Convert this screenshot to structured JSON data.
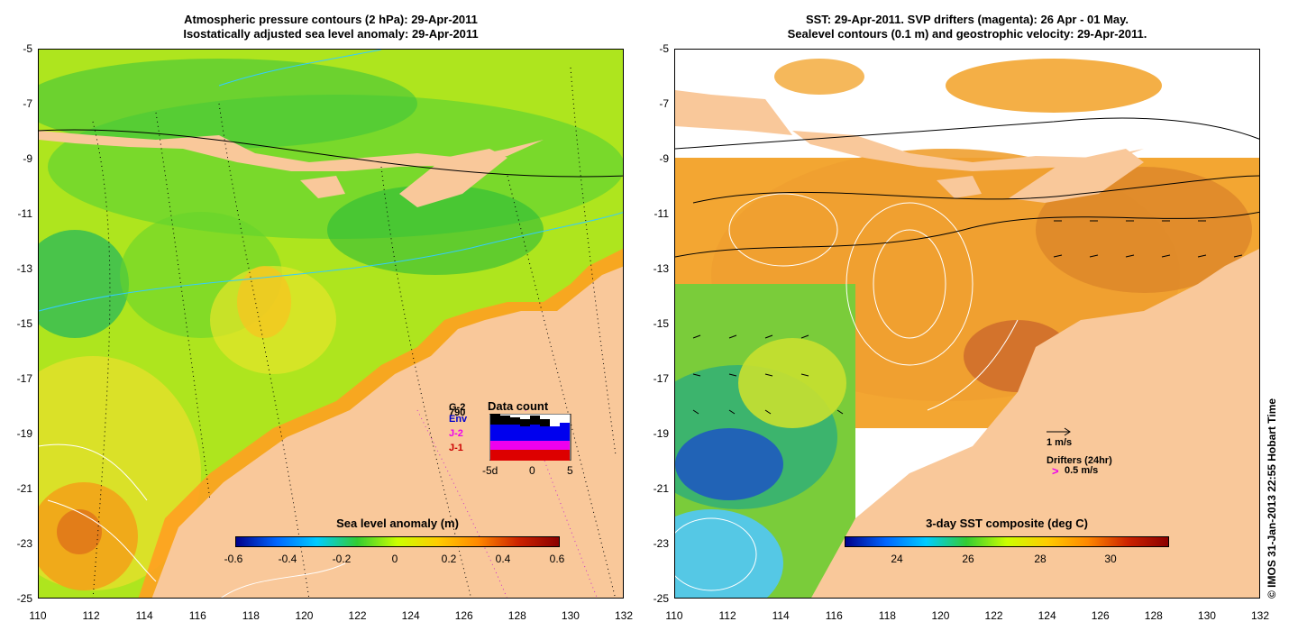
{
  "left_panel": {
    "title_line1": "Atmospheric pressure contours (2 hPa): 29-Apr-2011",
    "title_line2": "Isostatically adjusted sea level anomaly: 29-Apr-2011",
    "colorbar_title": "Sea level anomaly (m)",
    "colorbar_ticks": [
      "-0.6",
      "-0.4",
      "-0.2",
      "0",
      "0.2",
      "0.4",
      "0.6"
    ],
    "data_count": {
      "title": "Data count",
      "satellites": [
        {
          "name": "G-2",
          "color": "#000000"
        },
        {
          "name": "790",
          "color": "#000000"
        },
        {
          "name": "Env",
          "color": "#0000cc"
        },
        {
          "name": "J-2",
          "color": "#ee00ee"
        },
        {
          "name": "J-1",
          "color": "#cc0000"
        }
      ],
      "x_ticks": [
        "-5d",
        "0",
        "5"
      ]
    }
  },
  "right_panel": {
    "title_line1": "SST: 29-Apr-2011. SVP drifters (magenta): 26 Apr - 01 May.",
    "title_line2": "Sealevel contours (0.1 m) and geostrophic velocity: 29-Apr-2011.",
    "colorbar_title": "3-day SST composite (deg C)",
    "colorbar_ticks": [
      "24",
      "26",
      "28",
      "30"
    ],
    "velocity_scale": "1 m/s",
    "drifters_label": "Drifters (24hr)",
    "drifters_scale": "0.5 m/s",
    "drifter_marker": ">"
  },
  "axes": {
    "y_ticks": [
      "-5",
      "-7",
      "-9",
      "-11",
      "-13",
      "-15",
      "-17",
      "-19",
      "-21",
      "-23",
      "-25"
    ],
    "x_ticks": [
      "110",
      "112",
      "114",
      "116",
      "118",
      "120",
      "122",
      "124",
      "126",
      "128",
      "130",
      "132"
    ]
  },
  "credit": "© IMOS 31-Jan-2013 22:55 Hobart Time",
  "colors": {
    "land": "#f9c89a",
    "sla_gradient": [
      "#00008b",
      "#0066ff",
      "#00ccff",
      "#33cc33",
      "#ccff00",
      "#ffcc00",
      "#ff8800",
      "#cc2200",
      "#8b0000"
    ],
    "sst_gradient": [
      "#00008b",
      "#0066ff",
      "#00ccff",
      "#33cc33",
      "#ccff00",
      "#ffcc00",
      "#ff8800",
      "#cc2200",
      "#8b0000"
    ]
  }
}
